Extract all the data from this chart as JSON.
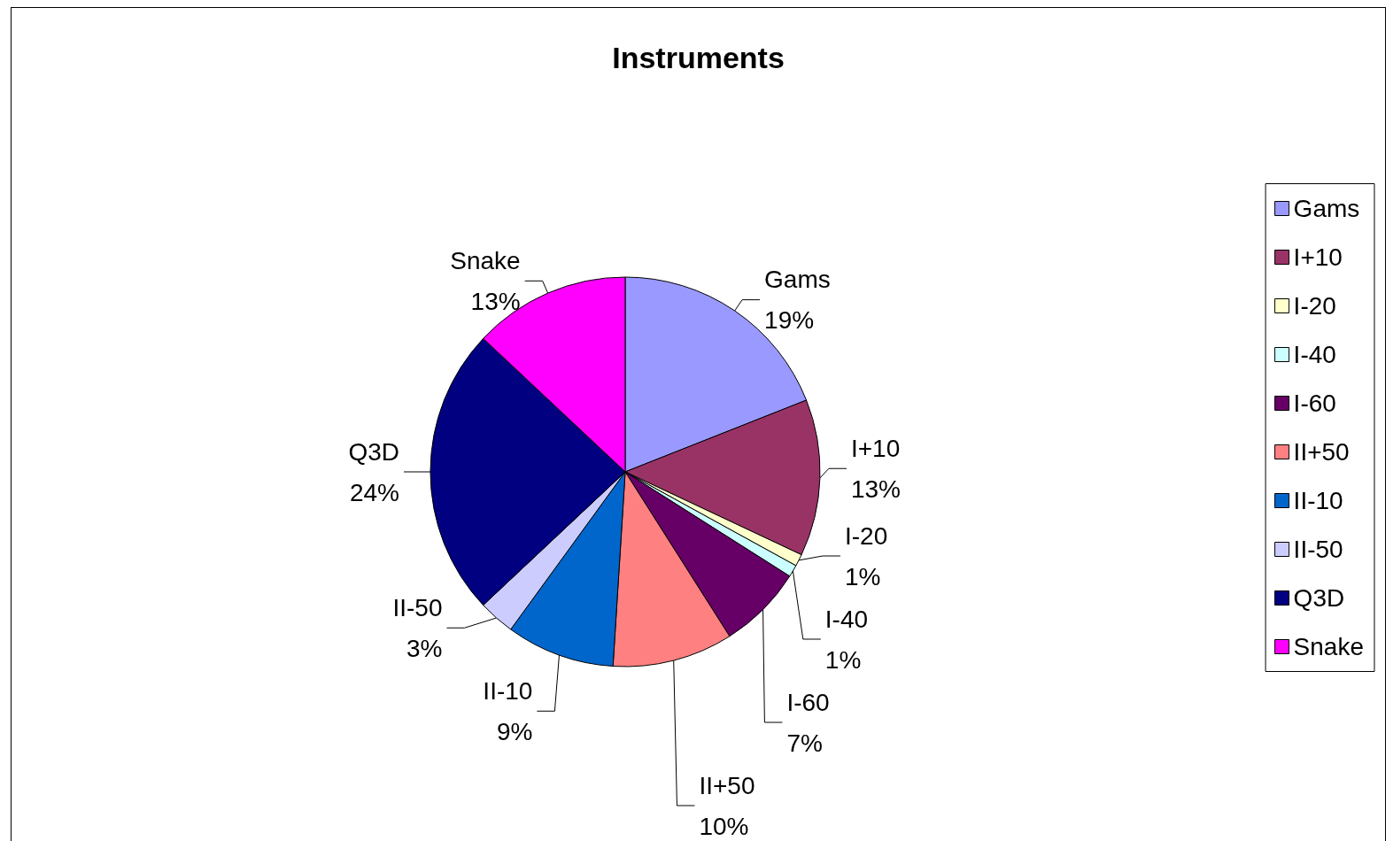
{
  "chart_data": {
    "type": "pie",
    "title": "Instruments",
    "categories": [
      "Gams",
      "I+10",
      "I-20",
      "I-40",
      "I-60",
      "II+50",
      "II-10",
      "II-50",
      "Q3D",
      "Snake"
    ],
    "values": [
      19,
      13,
      1,
      1,
      7,
      10,
      9,
      3,
      24,
      13
    ],
    "value_labels": [
      "19%",
      "13%",
      "1%",
      "1%",
      "7%",
      "10%",
      "9%",
      "3%",
      "24%",
      "13%"
    ],
    "colors": [
      "#9999ff",
      "#993366",
      "#ffffcc",
      "#ccffff",
      "#660066",
      "#ff8080",
      "#0066cc",
      "#ccccff",
      "#000080",
      "#ff00ff"
    ],
    "legend": "right"
  }
}
